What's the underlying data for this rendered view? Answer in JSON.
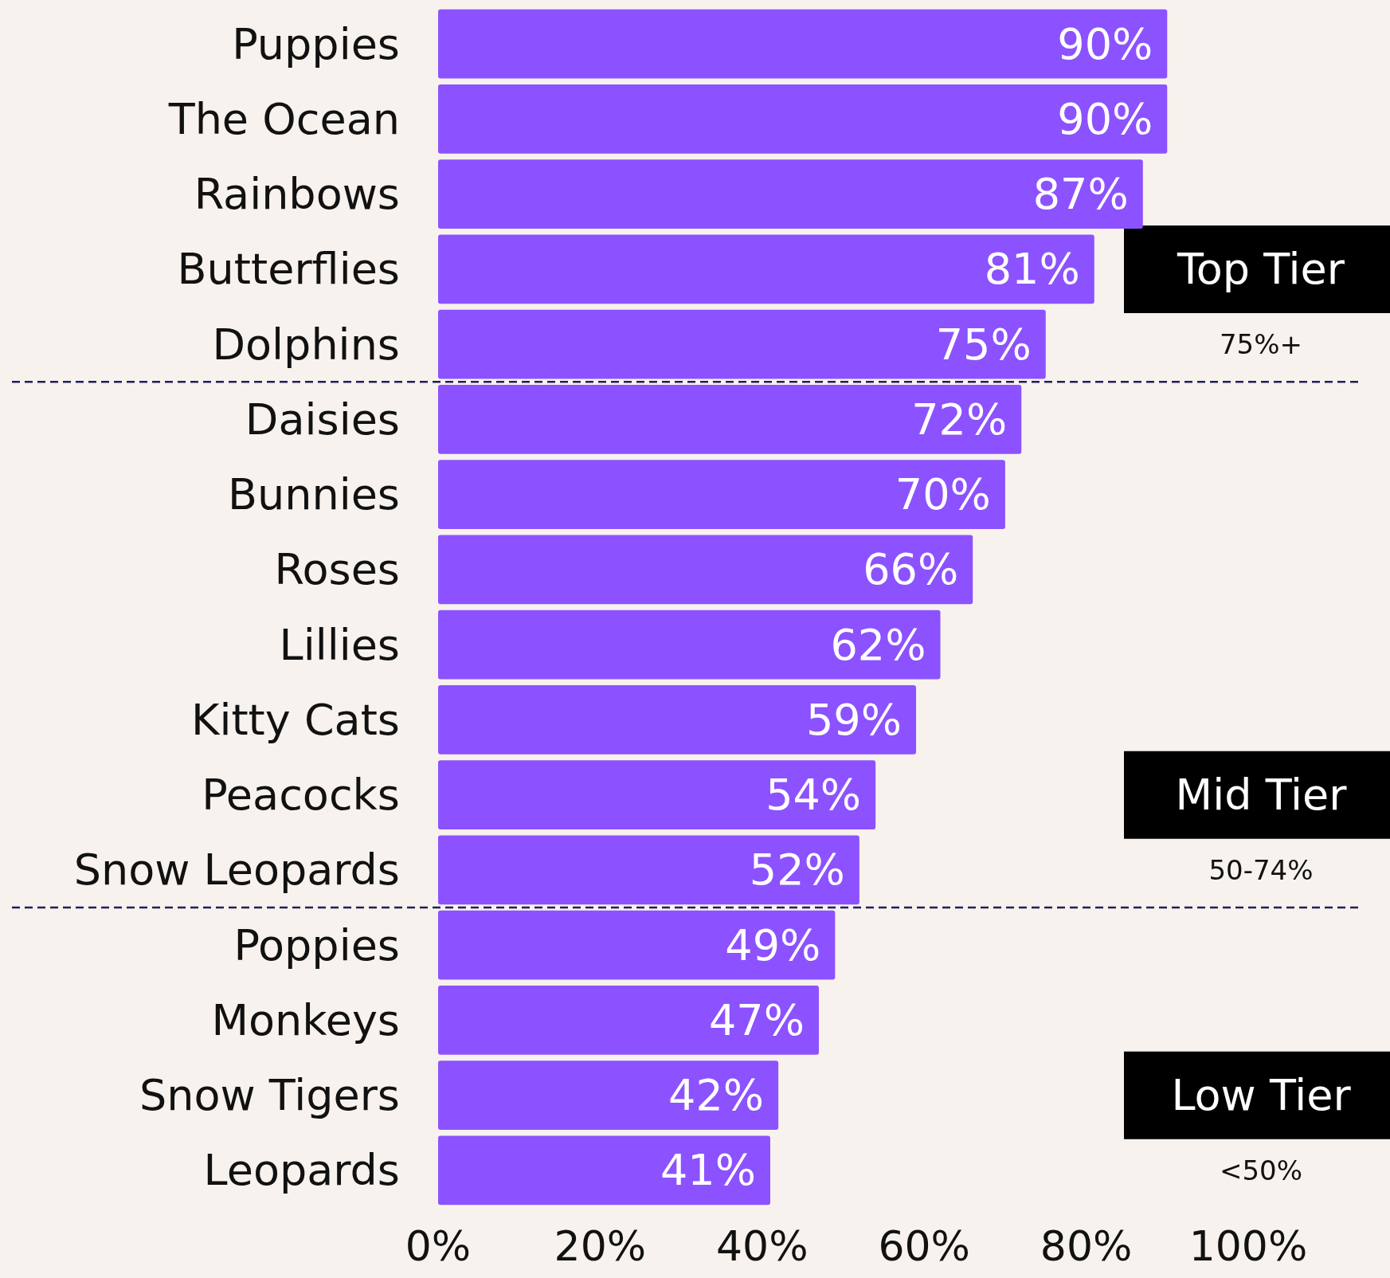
{
  "chart_data": {
    "type": "bar",
    "orientation": "horizontal",
    "categories": [
      "Puppies",
      "The Ocean",
      "Rainbows",
      "Butterflies",
      "Dolphins",
      "Daisies",
      "Bunnies",
      "Roses",
      "Lillies",
      "Kitty Cats",
      "Peacocks",
      "Snow Leopards",
      "Poppies",
      "Monkeys",
      "Snow Tigers",
      "Leopards"
    ],
    "values": [
      90,
      90,
      87,
      81,
      75,
      72,
      70,
      66,
      62,
      59,
      54,
      52,
      49,
      47,
      42,
      41
    ],
    "value_labels": [
      "90%",
      "90%",
      "87%",
      "81%",
      "75%",
      "72%",
      "70%",
      "66%",
      "62%",
      "59%",
      "54%",
      "52%",
      "49%",
      "47%",
      "42%",
      "41%"
    ],
    "color": "#8c52ff",
    "xlim": [
      0,
      100
    ],
    "xticks": [
      {
        "value": 0,
        "label": "0%"
      },
      {
        "value": 20,
        "label": "20%"
      },
      {
        "value": 40,
        "label": "40%"
      },
      {
        "value": 60,
        "label": "60%"
      },
      {
        "value": 80,
        "label": "80%"
      },
      {
        "value": 100,
        "label": "100%"
      }
    ],
    "grid": false,
    "annotations": [
      "Top Tier",
      "75%+",
      "Mid Tier",
      "50-74%",
      "Low Tier",
      "<50%"
    ]
  }
}
